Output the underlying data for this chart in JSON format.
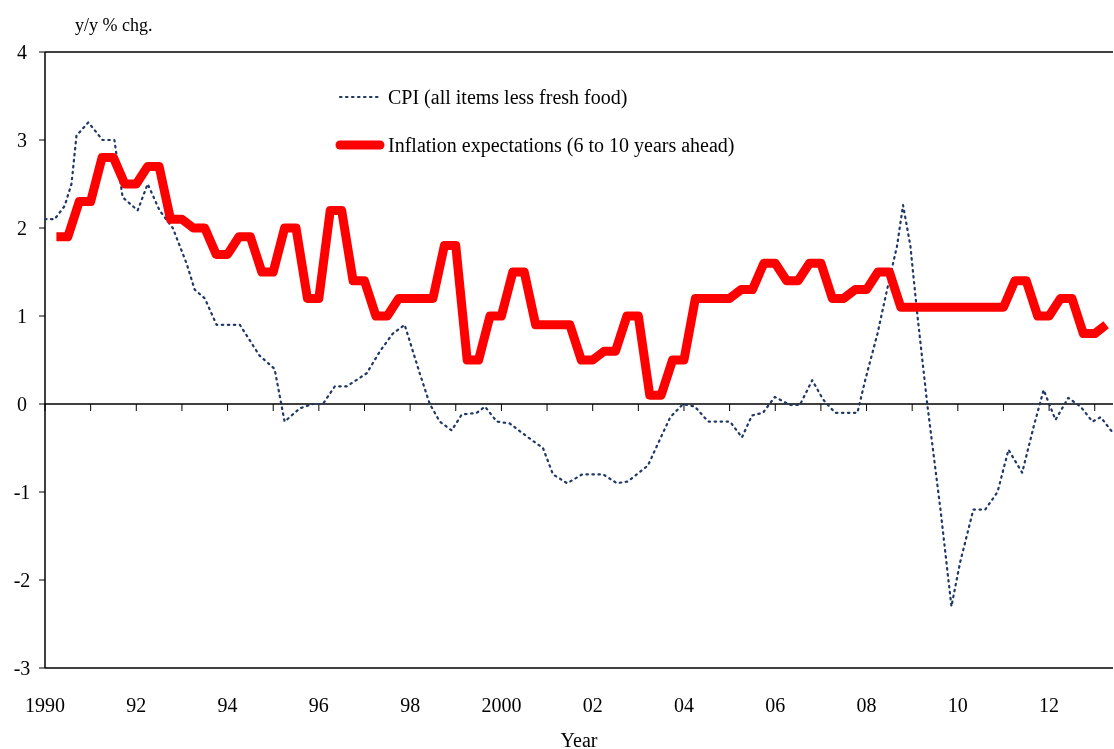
{
  "chart_data": {
    "type": "line",
    "xlabel": "Year",
    "ylabel": "y/y % chg.",
    "x": [
      1990.25,
      1990.5,
      1990.75,
      1991,
      1991.25,
      1991.5,
      1991.75,
      1992,
      1992.25,
      1992.5,
      1992.75,
      1993,
      1993.25,
      1993.5,
      1993.75,
      1994,
      1994.25,
      1994.5,
      1994.75,
      1995,
      1995.25,
      1995.5,
      1995.75,
      1996,
      1996.25,
      1996.5,
      1996.75,
      1997,
      1997.25,
      1997.5,
      1997.75,
      1998,
      1998.25,
      1998.5,
      1998.75,
      1999,
      1999.25,
      1999.5,
      1999.75,
      2000,
      2000.25,
      2000.5,
      2000.75,
      2001,
      2001.25,
      2001.5,
      2001.75,
      2002,
      2002.25,
      2002.5,
      2002.75,
      2003,
      2003.25,
      2003.5,
      2003.75,
      2004,
      2004.25,
      2004.5,
      2004.75,
      2005,
      2005.25,
      2005.5,
      2005.75,
      2006,
      2006.25,
      2006.5,
      2006.75,
      2007,
      2007.25,
      2007.5,
      2007.75,
      2008,
      2008.25,
      2008.5,
      2008.75,
      2009,
      2009.25,
      2009.5,
      2009.75,
      2010,
      2010.25,
      2010.5,
      2010.75,
      2011,
      2011.25,
      2011.5,
      2011.75,
      2012,
      2012.25,
      2012.5,
      2012.75,
      2013,
      2013.25
    ],
    "series": [
      {
        "name": "CPI (all items less fresh food)",
        "color": "#1f3864",
        "line_style": "dotted",
        "x": [
          1990,
          1990.21,
          1990.43,
          1990.58,
          1990.69,
          1990.95,
          1991.26,
          1991.52,
          1991.7,
          1992.03,
          1992.25,
          1992.51,
          1992.8,
          1993.1,
          1993.28,
          1993.5,
          1993.76,
          1994.27,
          1994.7,
          1995.03,
          1995.25,
          1995.58,
          1995.87,
          1996.09,
          1996.35,
          1996.61,
          1997.05,
          1997.34,
          1997.62,
          1997.88,
          1998.21,
          1998.43,
          1998.65,
          1998.91,
          1999.13,
          1999.46,
          1999.64,
          1999.9,
          2000.18,
          2000.56,
          2000.91,
          2001.13,
          2001.44,
          2001.77,
          2002.23,
          2002.53,
          2002.77,
          2003.21,
          2003.43,
          2003.7,
          2003.98,
          2004.24,
          2004.53,
          2005.01,
          2005.27,
          2005.49,
          2005.73,
          2005.99,
          2006.32,
          2006.54,
          2006.81,
          2007.05,
          2007.31,
          2007.8,
          2007.97,
          2008.24,
          2008.45,
          2008.67,
          2008.8,
          2008.96,
          2009.11,
          2009.33,
          2009.62,
          2009.86,
          2010.05,
          2010.34,
          2010.6,
          2010.87,
          2011.11,
          2011.41,
          2011.66,
          2011.88,
          2012.14,
          2012.42,
          2012.69,
          2012.95,
          2013.13,
          2013.4
        ],
        "values": [
          2.1,
          2.1,
          2.25,
          2.5,
          3.05,
          3.2,
          3.0,
          3.0,
          2.35,
          2.2,
          2.5,
          2.2,
          2.0,
          1.6,
          1.3,
          1.2,
          0.9,
          0.9,
          0.55,
          0.4,
          -0.2,
          -0.05,
          0,
          0,
          0.2,
          0.2,
          0.35,
          0.6,
          0.8,
          0.9,
          0.35,
          0,
          -0.2,
          -0.3,
          -0.12,
          -0.1,
          -0.03,
          -0.2,
          -0.22,
          -0.37,
          -0.5,
          -0.8,
          -0.9,
          -0.8,
          -0.8,
          -0.9,
          -0.88,
          -0.7,
          -0.45,
          -0.15,
          0,
          -0.03,
          -0.2,
          -0.2,
          -0.38,
          -0.13,
          -0.1,
          0.08,
          -0.01,
          -0.01,
          0.27,
          0.05,
          -0.1,
          -0.1,
          0.27,
          0.8,
          1.3,
          1.8,
          2.26,
          1.8,
          1.03,
          0,
          -1.2,
          -2.3,
          -1.8,
          -1.2,
          -1.2,
          -1.0,
          -0.52,
          -0.78,
          -0.26,
          0.16,
          -0.18,
          0.07,
          -0.03,
          -0.2,
          -0.15,
          -0.33
        ]
      },
      {
        "name": "Inflation expectations (6 to 10 years ahead)",
        "color": "#ff0000",
        "line_style": "solid",
        "values": [
          1.9,
          1.9,
          2.3,
          2.3,
          2.8,
          2.8,
          2.5,
          2.5,
          2.7,
          2.7,
          2.1,
          2.1,
          2.0,
          2.0,
          1.7,
          1.7,
          1.9,
          1.9,
          1.5,
          1.5,
          2.0,
          2.0,
          1.2,
          1.2,
          2.2,
          2.2,
          1.4,
          1.4,
          1.0,
          1.0,
          1.2,
          1.2,
          1.2,
          1.2,
          1.8,
          1.8,
          0.5,
          0.5,
          1.0,
          1.0,
          1.5,
          1.5,
          0.9,
          0.9,
          0.9,
          0.9,
          0.5,
          0.5,
          0.6,
          0.6,
          1.0,
          1.0,
          0.1,
          0.1,
          0.5,
          0.5,
          1.2,
          1.2,
          1.2,
          1.2,
          1.3,
          1.3,
          1.6,
          1.6,
          1.4,
          1.4,
          1.6,
          1.6,
          1.2,
          1.2,
          1.3,
          1.3,
          1.5,
          1.5,
          1.1,
          1.1,
          1.1,
          1.1,
          1.1,
          1.1,
          1.1,
          1.1,
          1.1,
          1.1,
          1.4,
          1.4,
          1.0,
          1.0,
          1.2,
          1.2,
          0.8,
          0.8,
          0.9
        ]
      }
    ],
    "xlim": [
      1990,
      2013.4
    ],
    "xticks": [
      {
        "value": 1990,
        "label": "1990"
      },
      {
        "value": 1991,
        "label": null
      },
      {
        "value": 1992,
        "label": "92"
      },
      {
        "value": 1993,
        "label": null
      },
      {
        "value": 1994,
        "label": "94"
      },
      {
        "value": 1995,
        "label": null
      },
      {
        "value": 1996,
        "label": "96"
      },
      {
        "value": 1997,
        "label": null
      },
      {
        "value": 1998,
        "label": "98"
      },
      {
        "value": 1999,
        "label": null
      },
      {
        "value": 2000,
        "label": "2000"
      },
      {
        "value": 2001,
        "label": null
      },
      {
        "value": 2002,
        "label": "02"
      },
      {
        "value": 2003,
        "label": null
      },
      {
        "value": 2004,
        "label": "04"
      },
      {
        "value": 2005,
        "label": null
      },
      {
        "value": 2006,
        "label": "06"
      },
      {
        "value": 2007,
        "label": null
      },
      {
        "value": 2008,
        "label": "08"
      },
      {
        "value": 2009,
        "label": null
      },
      {
        "value": 2010,
        "label": "10"
      },
      {
        "value": 2011,
        "label": null
      },
      {
        "value": 2012,
        "label": "12"
      },
      {
        "value": 2013,
        "label": null
      }
    ],
    "ylim": [
      -3,
      4
    ],
    "yticks": [
      -3,
      -2,
      -1,
      0,
      1,
      2,
      3,
      4
    ],
    "legend": "top",
    "marker": "none"
  }
}
